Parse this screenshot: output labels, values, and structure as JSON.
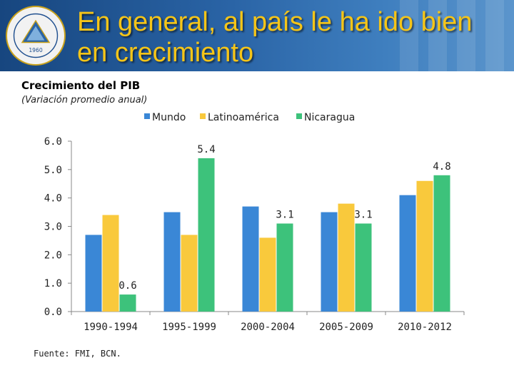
{
  "slide": {
    "title_line1": "En general, al país le ha ido bien",
    "title_line2": "en crecimiento",
    "logo_text": "1960"
  },
  "chart_data": {
    "type": "bar",
    "title": "Crecimiento del PIB",
    "subtitle": "(Variación promedio anual)",
    "categories": [
      "1990-1994",
      "1995-1999",
      "2000-2004",
      "2005-2009",
      "2010-2012"
    ],
    "series": [
      {
        "name": "Mundo",
        "color": "#3a87d6",
        "values": [
          2.7,
          3.5,
          3.7,
          3.5,
          4.1
        ]
      },
      {
        "name": "Latinoamérica",
        "color": "#f9c93c",
        "values": [
          3.4,
          2.7,
          2.6,
          3.8,
          4.6
        ]
      },
      {
        "name": "Nicaragua",
        "color": "#3dc27b",
        "values": [
          0.6,
          5.4,
          3.1,
          3.1,
          4.8
        ]
      }
    ],
    "data_labels": [
      {
        "series": 2,
        "category": 0,
        "text": "0.6"
      },
      {
        "series": 2,
        "category": 1,
        "text": "5.4"
      },
      {
        "series": 2,
        "category": 2,
        "text": "3.1"
      },
      {
        "series": 2,
        "category": 3,
        "text": "3.1"
      },
      {
        "series": 2,
        "category": 4,
        "text": "4.8"
      }
    ],
    "yticks": [
      "0.0",
      "1.0",
      "2.0",
      "3.0",
      "4.0",
      "5.0",
      "6.0"
    ],
    "ylim": [
      0,
      6
    ],
    "xlabel": "",
    "ylabel": "",
    "legend_position": "top",
    "grid": false
  },
  "source": "Fuente: FMI, BCN."
}
